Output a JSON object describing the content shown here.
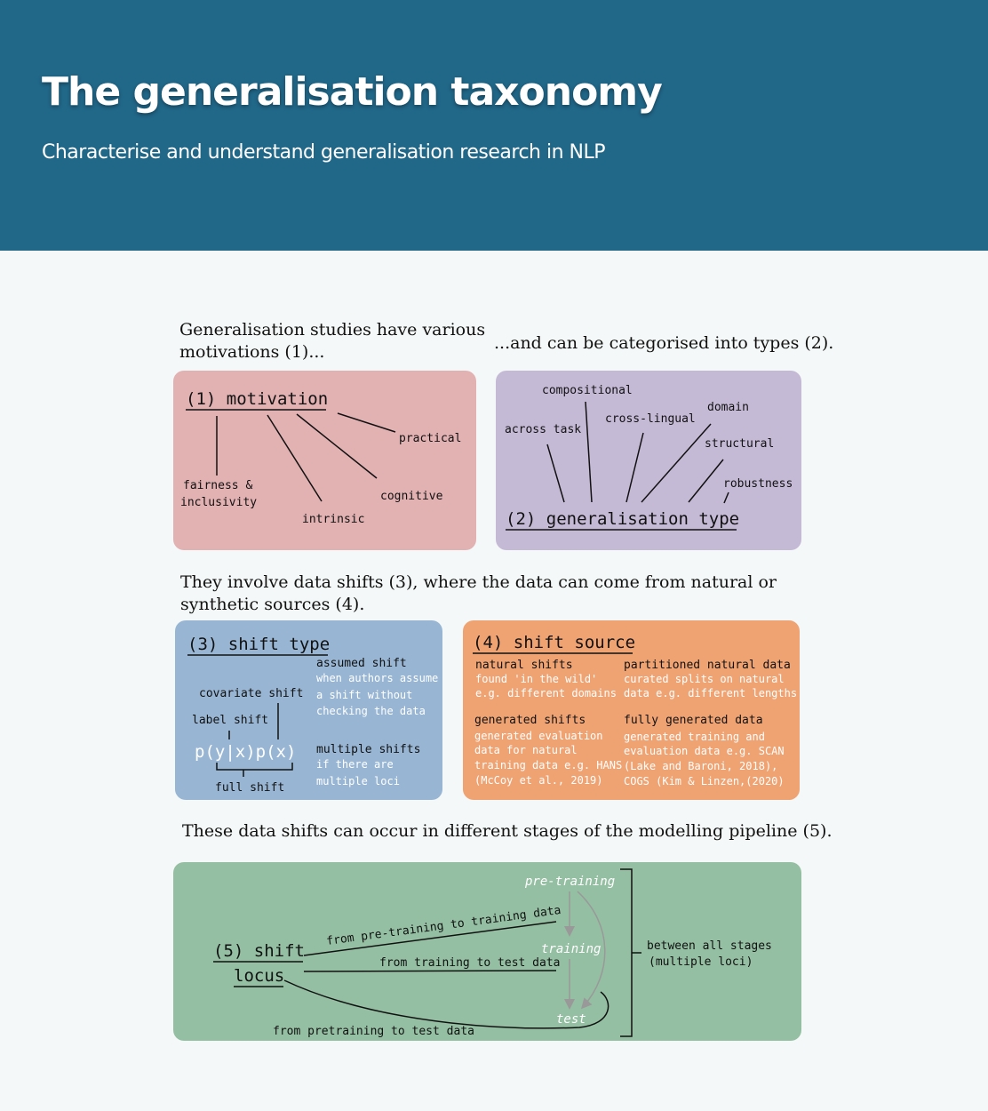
{
  "header": {
    "title": "The generalisation taxonomy",
    "subtitle": "Characterise and understand generalisation research in NLP"
  },
  "captions": {
    "motivations_1": "Generalisation studies have various",
    "motivations_2": "motivations (1)...",
    "types": "...and can be categorised into types (2).",
    "shifts_1": "They involve data shifts (3), where the data can come from natural or",
    "shifts_2": "synthetic sources (4).",
    "stages": "These data shifts can occur in different stages of the modelling pipeline (5)."
  },
  "motivation": {
    "title": "(1) motivation",
    "items": {
      "practical": "practical",
      "fairness_1": "fairness &",
      "fairness_2": "inclusivity",
      "cognitive": "cognitive",
      "intrinsic": "intrinsic"
    }
  },
  "gen_type": {
    "title": "(2) generalisation type",
    "items": {
      "compositional": "compositional",
      "domain": "domain",
      "cross_lingual": "cross-lingual",
      "across_task": "across task",
      "structural": "structural",
      "robustness": "robustness"
    }
  },
  "shift_type": {
    "title": "(3) shift type",
    "covariate": "covariate shift",
    "label": "label shift",
    "formula": "p(y|x)p(x)",
    "full": "full shift",
    "assumed_title": "assumed shift",
    "assumed_desc": [
      "when authors assume",
      "a shift without",
      "checking the data"
    ],
    "multiple_title": "multiple shifts",
    "multiple_desc": [
      "if there are",
      "multiple loci"
    ]
  },
  "shift_source": {
    "title": "(4) shift source",
    "natural_title": "natural shifts",
    "natural_desc": [
      "found 'in the wild'",
      "e.g. different domains"
    ],
    "partitioned_title": "partitioned natural data",
    "partitioned_desc": [
      "curated splits on natural",
      "data e.g. different lengths"
    ],
    "generated_title": "generated shifts",
    "generated_desc": [
      "generated evaluation",
      "data for natural",
      "training data e.g. HANS",
      "(McCoy et al., 2019)"
    ],
    "fully_title": "fully generated data",
    "fully_desc": [
      "generated training and",
      "evaluation data e.g. SCAN",
      "(Lake and Baroni, 2018),",
      "COGS (Kim & Linzen,(2020)"
    ]
  },
  "locus": {
    "title_1": "(5) shift",
    "title_2": "locus",
    "pretraining": "pre-training",
    "training": "training",
    "test": "test",
    "from_pt_train": "from pre-training to training data",
    "from_train_test": "from training to test data",
    "from_pt_test": "from pretraining to test data",
    "between_1": "between all stages",
    "between_2": "(multiple loci)"
  },
  "colors": {
    "header_bg": "#216788",
    "motivation_bg": "#e2b1b2",
    "gen_type_bg": "#c5bad6",
    "shift_type_bg": "#98b6d4",
    "shift_source_bg": "#f0a372",
    "locus_bg": "#94bfa2"
  }
}
